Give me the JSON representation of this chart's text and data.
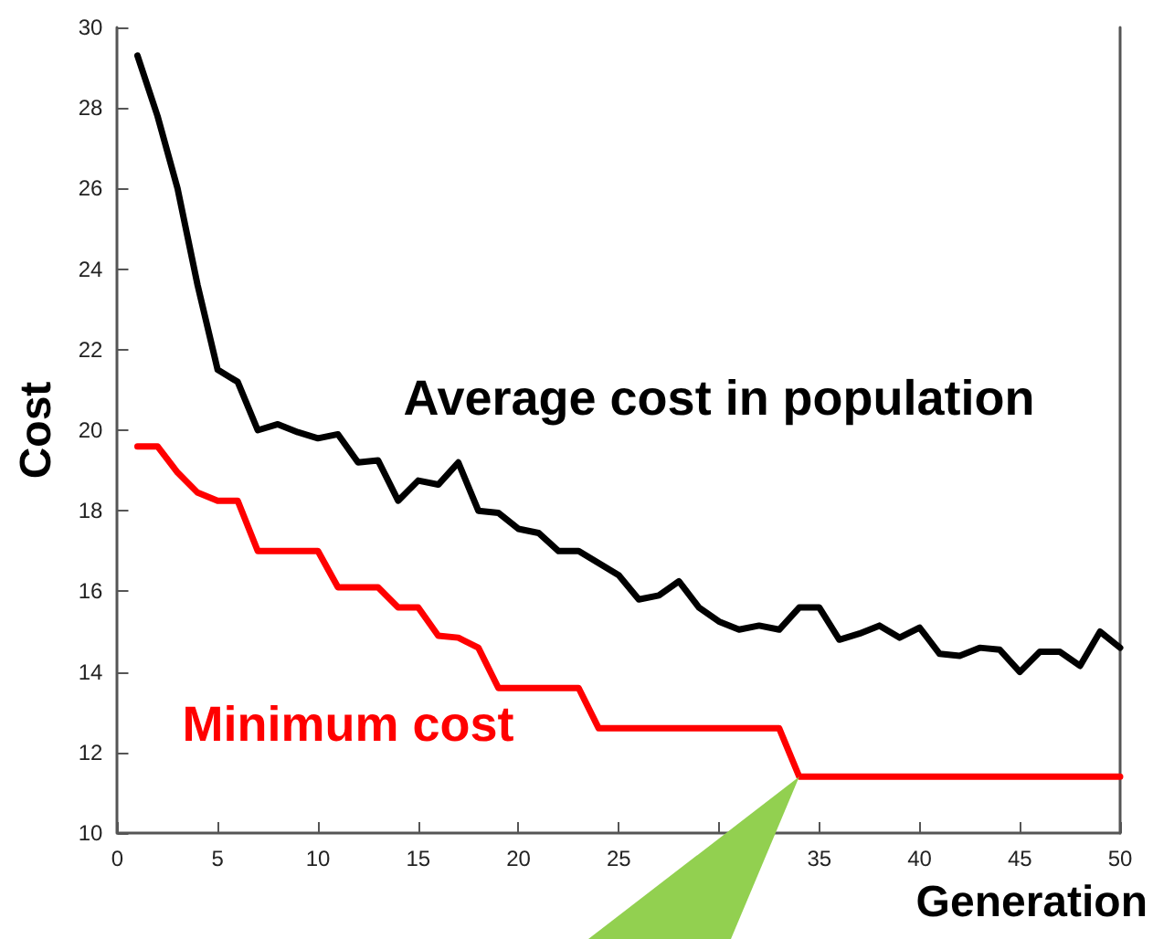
{
  "chart_data": {
    "type": "line",
    "xlabel": "Generation",
    "ylabel": "Cost",
    "x": [
      1,
      2,
      3,
      4,
      5,
      6,
      7,
      8,
      9,
      10,
      11,
      12,
      13,
      14,
      15,
      16,
      17,
      18,
      19,
      20,
      21,
      22,
      23,
      24,
      25,
      26,
      27,
      28,
      29,
      30,
      31,
      32,
      33,
      34,
      35,
      36,
      37,
      38,
      39,
      40,
      41,
      42,
      43,
      44,
      45,
      46,
      47,
      48,
      49,
      50
    ],
    "series": [
      {
        "name": "Average cost in population",
        "color": "#000000",
        "values": [
          29.3,
          27.8,
          26.0,
          23.6,
          21.5,
          21.2,
          20.0,
          20.15,
          19.95,
          19.8,
          19.9,
          19.2,
          19.25,
          18.25,
          18.75,
          18.65,
          19.2,
          18.0,
          17.95,
          17.55,
          17.45,
          17.0,
          17.0,
          16.7,
          16.4,
          15.8,
          15.9,
          16.25,
          15.6,
          15.25,
          15.05,
          15.15,
          15.05,
          15.6,
          15.6,
          14.8,
          14.95,
          15.15,
          14.85,
          15.1,
          14.45,
          14.4,
          14.6,
          14.55,
          14.0,
          14.5,
          14.5,
          14.15,
          15.0,
          14.6
        ]
      },
      {
        "name": "Minimum cost",
        "color": "#ff0000",
        "values": [
          19.6,
          19.6,
          18.95,
          18.45,
          18.25,
          18.25,
          17.0,
          17.0,
          17.0,
          17.0,
          16.1,
          16.1,
          16.1,
          15.6,
          15.6,
          14.9,
          14.85,
          14.6,
          13.6,
          13.6,
          13.6,
          13.6,
          13.6,
          12.6,
          12.6,
          12.6,
          12.6,
          12.6,
          12.6,
          12.6,
          12.6,
          12.6,
          12.6,
          11.4,
          11.4,
          11.4,
          11.4,
          11.4,
          11.4,
          11.4,
          11.4,
          11.4,
          11.4,
          11.4,
          11.4,
          11.4,
          11.4,
          11.4,
          11.4,
          11.4
        ]
      }
    ],
    "xlim": [
      0,
      50
    ],
    "xticks": [
      0,
      5,
      10,
      15,
      20,
      25,
      {
        "value": 30,
        "label": null
      },
      35,
      40,
      45,
      50
    ],
    "ylim": [
      10,
      30
    ],
    "yticks": [
      10,
      12,
      14,
      16,
      18,
      20,
      22,
      24,
      26,
      28,
      30
    ],
    "grid": false,
    "legend": false,
    "marker": "none",
    "line_style": "solid"
  }
}
